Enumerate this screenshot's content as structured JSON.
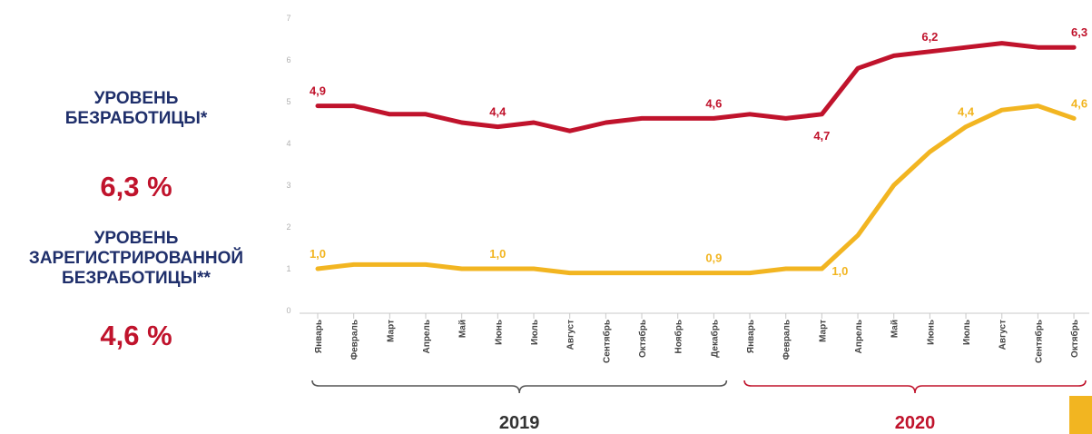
{
  "metrics": {
    "unemployment": {
      "title_line1": "УРОВЕНЬ",
      "title_line2": "БЕЗРАБОТИЦЫ*",
      "value": "6,3 %"
    },
    "registered": {
      "title_line1": "УРОВЕНЬ",
      "title_line2": "ЗАРЕГИСТРИРОВАННОЙ",
      "title_line3": "БЕЗРАБОТИЦЫ**",
      "value": "4,6 %"
    }
  },
  "colors": {
    "unemployment": "#c0132c",
    "registered": "#f2b521",
    "title": "#1f2f6b",
    "brace_2019": "#555555",
    "brace_2020": "#c0132c"
  },
  "chart_data": {
    "type": "line",
    "categories": [
      "Январь",
      "Февраль",
      "Март",
      "Апрель",
      "Май",
      "Июнь",
      "Июль",
      "Август",
      "Сентябрь",
      "Октябрь",
      "Ноябрь",
      "Декабрь",
      "Январь",
      "Февраль",
      "Март",
      "Апрель",
      "Май",
      "Июнь",
      "Июль",
      "Август",
      "Сентябрь",
      "Октябрь"
    ],
    "year_groups": [
      {
        "label": "2019",
        "start": 0,
        "end": 11
      },
      {
        "label": "2020",
        "start": 12,
        "end": 21
      }
    ],
    "ylim": [
      0,
      7
    ],
    "yticks": [
      0,
      1,
      2,
      3,
      4,
      5,
      6,
      7
    ],
    "ytick_labels": [
      "0",
      "1",
      "2",
      "3",
      "4",
      "5",
      "6",
      "7"
    ],
    "series": [
      {
        "values": [
          4.9,
          4.9,
          4.7,
          4.7,
          4.5,
          4.4,
          4.5,
          4.3,
          4.5,
          4.6,
          4.6,
          4.6,
          4.7,
          4.6,
          4.7,
          5.8,
          6.1,
          6.2,
          6.3,
          6.4,
          6.3,
          6.3
        ],
        "labels": [
          {
            "index": 0,
            "text": "4,9"
          },
          {
            "index": 5,
            "text": "4,4"
          },
          {
            "index": 11,
            "text": "4,6"
          },
          {
            "index": 14,
            "text": "4,7"
          },
          {
            "index": 17,
            "text": "6,2"
          },
          {
            "index": 21,
            "text": "6,3"
          }
        ]
      },
      {
        "values": [
          1.0,
          1.1,
          1.1,
          1.1,
          1.0,
          1.0,
          1.0,
          0.9,
          0.9,
          0.9,
          0.9,
          0.9,
          0.9,
          1.0,
          1.0,
          1.8,
          3.0,
          3.8,
          4.4,
          4.8,
          4.9,
          4.6
        ],
        "labels": [
          {
            "index": 0,
            "text": "1,0"
          },
          {
            "index": 5,
            "text": "1,0"
          },
          {
            "index": 11,
            "text": "0,9"
          },
          {
            "index": 14,
            "text": "1,0"
          },
          {
            "index": 18,
            "text": "4,4"
          },
          {
            "index": 21,
            "text": "4,6"
          }
        ]
      }
    ]
  }
}
